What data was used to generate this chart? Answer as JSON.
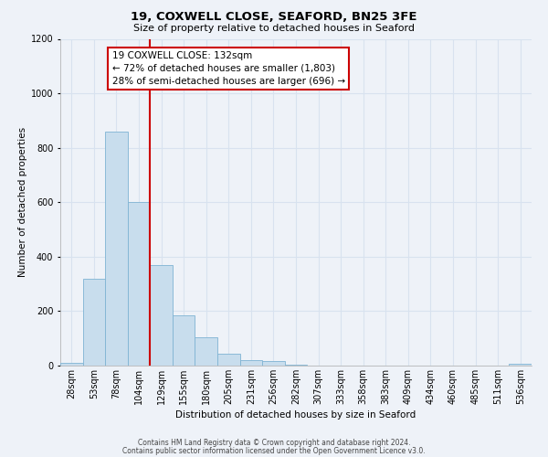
{
  "title": "19, COXWELL CLOSE, SEAFORD, BN25 3FE",
  "subtitle": "Size of property relative to detached houses in Seaford",
  "xlabel": "Distribution of detached houses by size in Seaford",
  "ylabel": "Number of detached properties",
  "bar_values": [
    10,
    320,
    860,
    600,
    370,
    185,
    105,
    45,
    20,
    18,
    5,
    0,
    0,
    0,
    0,
    0,
    0,
    0,
    0,
    0,
    8
  ],
  "bin_labels": [
    "28sqm",
    "53sqm",
    "78sqm",
    "104sqm",
    "129sqm",
    "155sqm",
    "180sqm",
    "205sqm",
    "231sqm",
    "256sqm",
    "282sqm",
    "307sqm",
    "333sqm",
    "358sqm",
    "383sqm",
    "409sqm",
    "434sqm",
    "460sqm",
    "485sqm",
    "511sqm",
    "536sqm"
  ],
  "bar_color": "#c8dded",
  "bar_edge_color": "#7fb3d3",
  "vline_color": "#cc0000",
  "annotation_title": "19 COXWELL CLOSE: 132sqm",
  "annotation_line1": "← 72% of detached houses are smaller (1,803)",
  "annotation_line2": "28% of semi-detached houses are larger (696) →",
  "annotation_box_color": "#ffffff",
  "annotation_box_edge": "#cc0000",
  "ylim": [
    0,
    1200
  ],
  "yticks": [
    0,
    200,
    400,
    600,
    800,
    1000,
    1200
  ],
  "footer_line1": "Contains HM Land Registry data © Crown copyright and database right 2024.",
  "footer_line2": "Contains public sector information licensed under the Open Government Licence v3.0.",
  "bg_color": "#eef2f8",
  "grid_color": "#d8e2ef",
  "title_fontsize": 9.5,
  "subtitle_fontsize": 8,
  "axis_label_fontsize": 7.5,
  "tick_fontsize": 7
}
